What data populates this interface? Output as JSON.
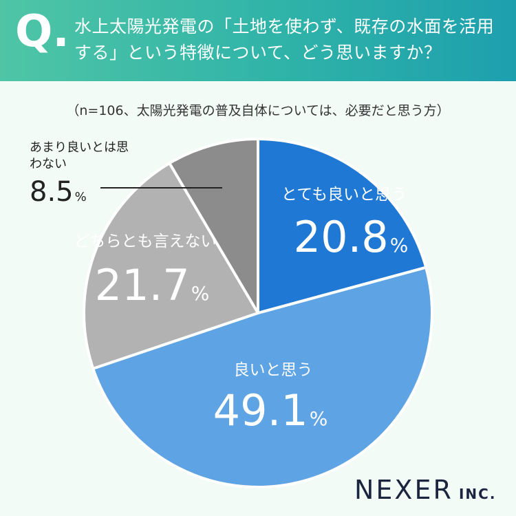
{
  "header": {
    "q_mark": "Q.",
    "title": "水上太陽光発電の「土地を使わず、既存の水面を活用する」という特徴について、どう思いますか？"
  },
  "subtitle": "（n=106、太陽光発電の普及自体については、必要だと思う方）",
  "brand": {
    "name": "NEXER",
    "suffix": "INC."
  },
  "colors": {
    "very_good": "#1f78d4",
    "good": "#5ea3e3",
    "neutral": "#b2b2b2",
    "not_good": "#8c8c8c",
    "header_from": "#4fc5a6",
    "header_to": "#1e9fae",
    "background": "#f3fbf7"
  },
  "chart_data": {
    "type": "pie",
    "slices": [
      {
        "label": "とても良いと思う",
        "value": 20.8,
        "display": "20.8"
      },
      {
        "label": "良いと思う",
        "value": 49.1,
        "display": "49.1"
      },
      {
        "label": "どちらとも言えない",
        "value": 21.7,
        "display": "21.7"
      },
      {
        "label": "あまり良いとは思わない",
        "value": 8.5,
        "display": "8.5"
      }
    ],
    "unit": "%",
    "start": "12 o'clock",
    "direction": "clockwise"
  }
}
